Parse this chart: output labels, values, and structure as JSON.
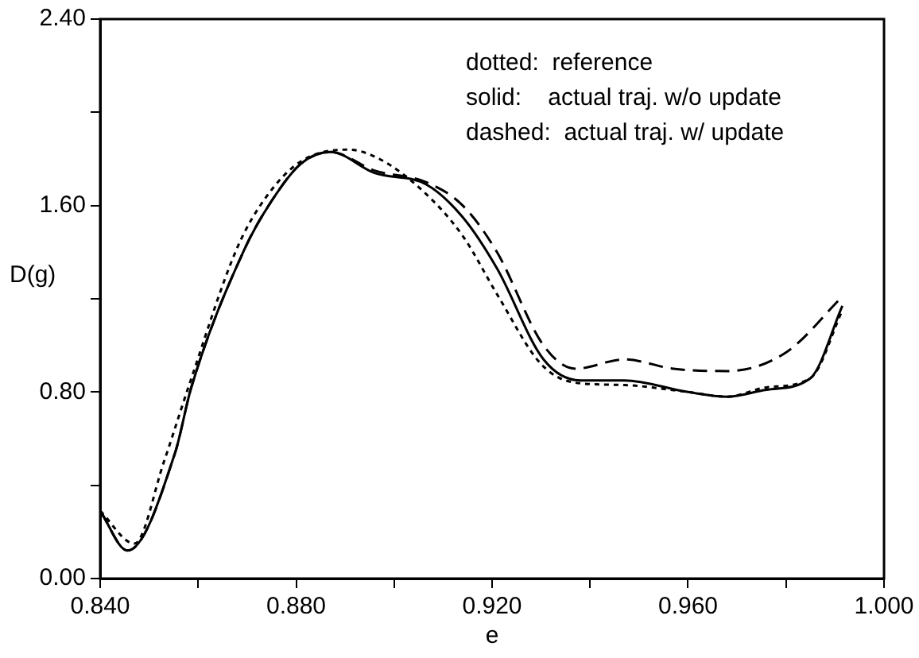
{
  "chart_data": {
    "type": "line",
    "xlabel": "e",
    "ylabel": "D(g)",
    "xlim": [
      0.84,
      1.0
    ],
    "xticks": [
      {
        "value": 0.84,
        "label": "0.840"
      },
      {
        "value": 0.86,
        "label": null
      },
      {
        "value": 0.88,
        "label": "0.880"
      },
      {
        "value": 0.9,
        "label": null
      },
      {
        "value": 0.92,
        "label": "0.920"
      },
      {
        "value": 0.94,
        "label": null
      },
      {
        "value": 0.96,
        "label": "0.960"
      },
      {
        "value": 0.98,
        "label": null
      },
      {
        "value": 1.0,
        "label": "1.000"
      }
    ],
    "ylim": [
      0,
      2.4
    ],
    "yticks": [
      {
        "value": 0,
        "label": "0.00"
      },
      {
        "value": 0.4,
        "label": null
      },
      {
        "value": 0.8,
        "label": "0.80"
      },
      {
        "value": 1.2,
        "label": null
      },
      {
        "value": 1.6,
        "label": "1.60"
      },
      {
        "value": 2.0,
        "label": null
      },
      {
        "value": 2.4,
        "label": "2.40"
      }
    ],
    "grid": false,
    "legend": false,
    "marker": "none",
    "annotations": [
      "dotted:  reference",
      "solid:    actual traj. w/o update",
      "dashed:  actual traj. w/ update"
    ],
    "series": [
      {
        "color": "#000000",
        "line_style": "dotted",
        "x": [
          0.84,
          0.847,
          0.853,
          0.858,
          0.868,
          0.874,
          0.881,
          0.8906,
          0.897,
          0.906,
          0.914,
          0.921,
          0.93,
          0.937,
          0.947,
          0.96,
          0.968,
          0.976,
          0.985,
          0.9915
        ],
        "values": [
          0.29,
          0.15,
          0.5,
          0.82,
          1.42,
          1.64,
          1.79,
          1.84,
          1.8,
          1.66,
          1.47,
          1.22,
          0.92,
          0.84,
          0.83,
          0.8,
          0.78,
          0.82,
          0.86,
          1.15
        ]
      },
      {
        "color": "#000000",
        "line_style": "solid",
        "x": [
          0.84,
          0.8456,
          0.8553,
          0.8586,
          0.8694,
          0.875,
          0.881,
          0.887,
          0.896,
          0.9066,
          0.914,
          0.921,
          0.9305,
          0.938,
          0.947,
          0.96,
          0.968,
          0.976,
          0.985,
          0.9915
        ],
        "values": [
          0.29,
          0.12,
          0.54,
          0.82,
          1.41,
          1.62,
          1.78,
          1.83,
          1.74,
          1.69,
          1.55,
          1.33,
          0.94,
          0.85,
          0.85,
          0.8,
          0.78,
          0.81,
          0.86,
          1.17
        ]
      },
      {
        "color": "#000000",
        "line_style": "dashed",
        "x": [
          0.84,
          0.8456,
          0.8553,
          0.8586,
          0.8694,
          0.875,
          0.881,
          0.887,
          0.896,
          0.9066,
          0.914,
          0.921,
          0.9305,
          0.937,
          0.947,
          0.957,
          0.968,
          0.98,
          0.9915
        ],
        "values": [
          0.29,
          0.12,
          0.54,
          0.82,
          1.41,
          1.62,
          1.78,
          1.83,
          1.75,
          1.7,
          1.6,
          1.4,
          1.0,
          0.9,
          0.94,
          0.9,
          0.89,
          0.97,
          1.21
        ]
      }
    ]
  }
}
